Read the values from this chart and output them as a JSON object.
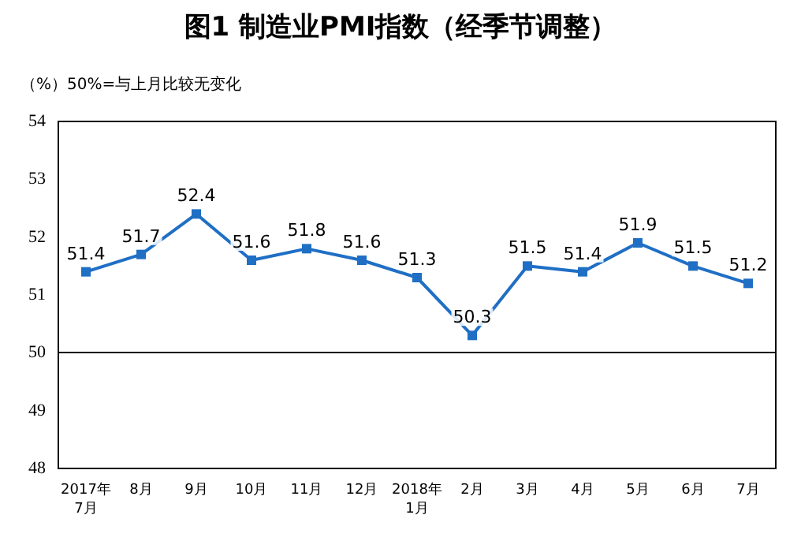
{
  "chart_data": {
    "type": "line",
    "title": "图1 制造业PMI指数（经季节调整）",
    "ylabel": "（%）50%=与上月比较无变化",
    "categories": [
      "2017年\n7月",
      "8月",
      "9月",
      "10月",
      "11月",
      "12月",
      "2018年\n1月",
      "2月",
      "3月",
      "4月",
      "5月",
      "6月",
      "7月"
    ],
    "series": [
      {
        "color": "#1f6fc5",
        "values": [
          51.4,
          51.7,
          52.4,
          51.6,
          51.8,
          51.6,
          51.3,
          50.3,
          51.5,
          51.4,
          51.9,
          51.5,
          51.2
        ]
      }
    ],
    "ylim": [
      48,
      54
    ],
    "yticks": [
      48,
      49,
      50,
      51,
      52,
      53,
      54
    ],
    "ref_lines": [
      {
        "axis": "y",
        "value": 50,
        "color": "#000000"
      }
    ],
    "marker": "square",
    "line_style": "solid",
    "data_labels": true,
    "grid": false
  }
}
